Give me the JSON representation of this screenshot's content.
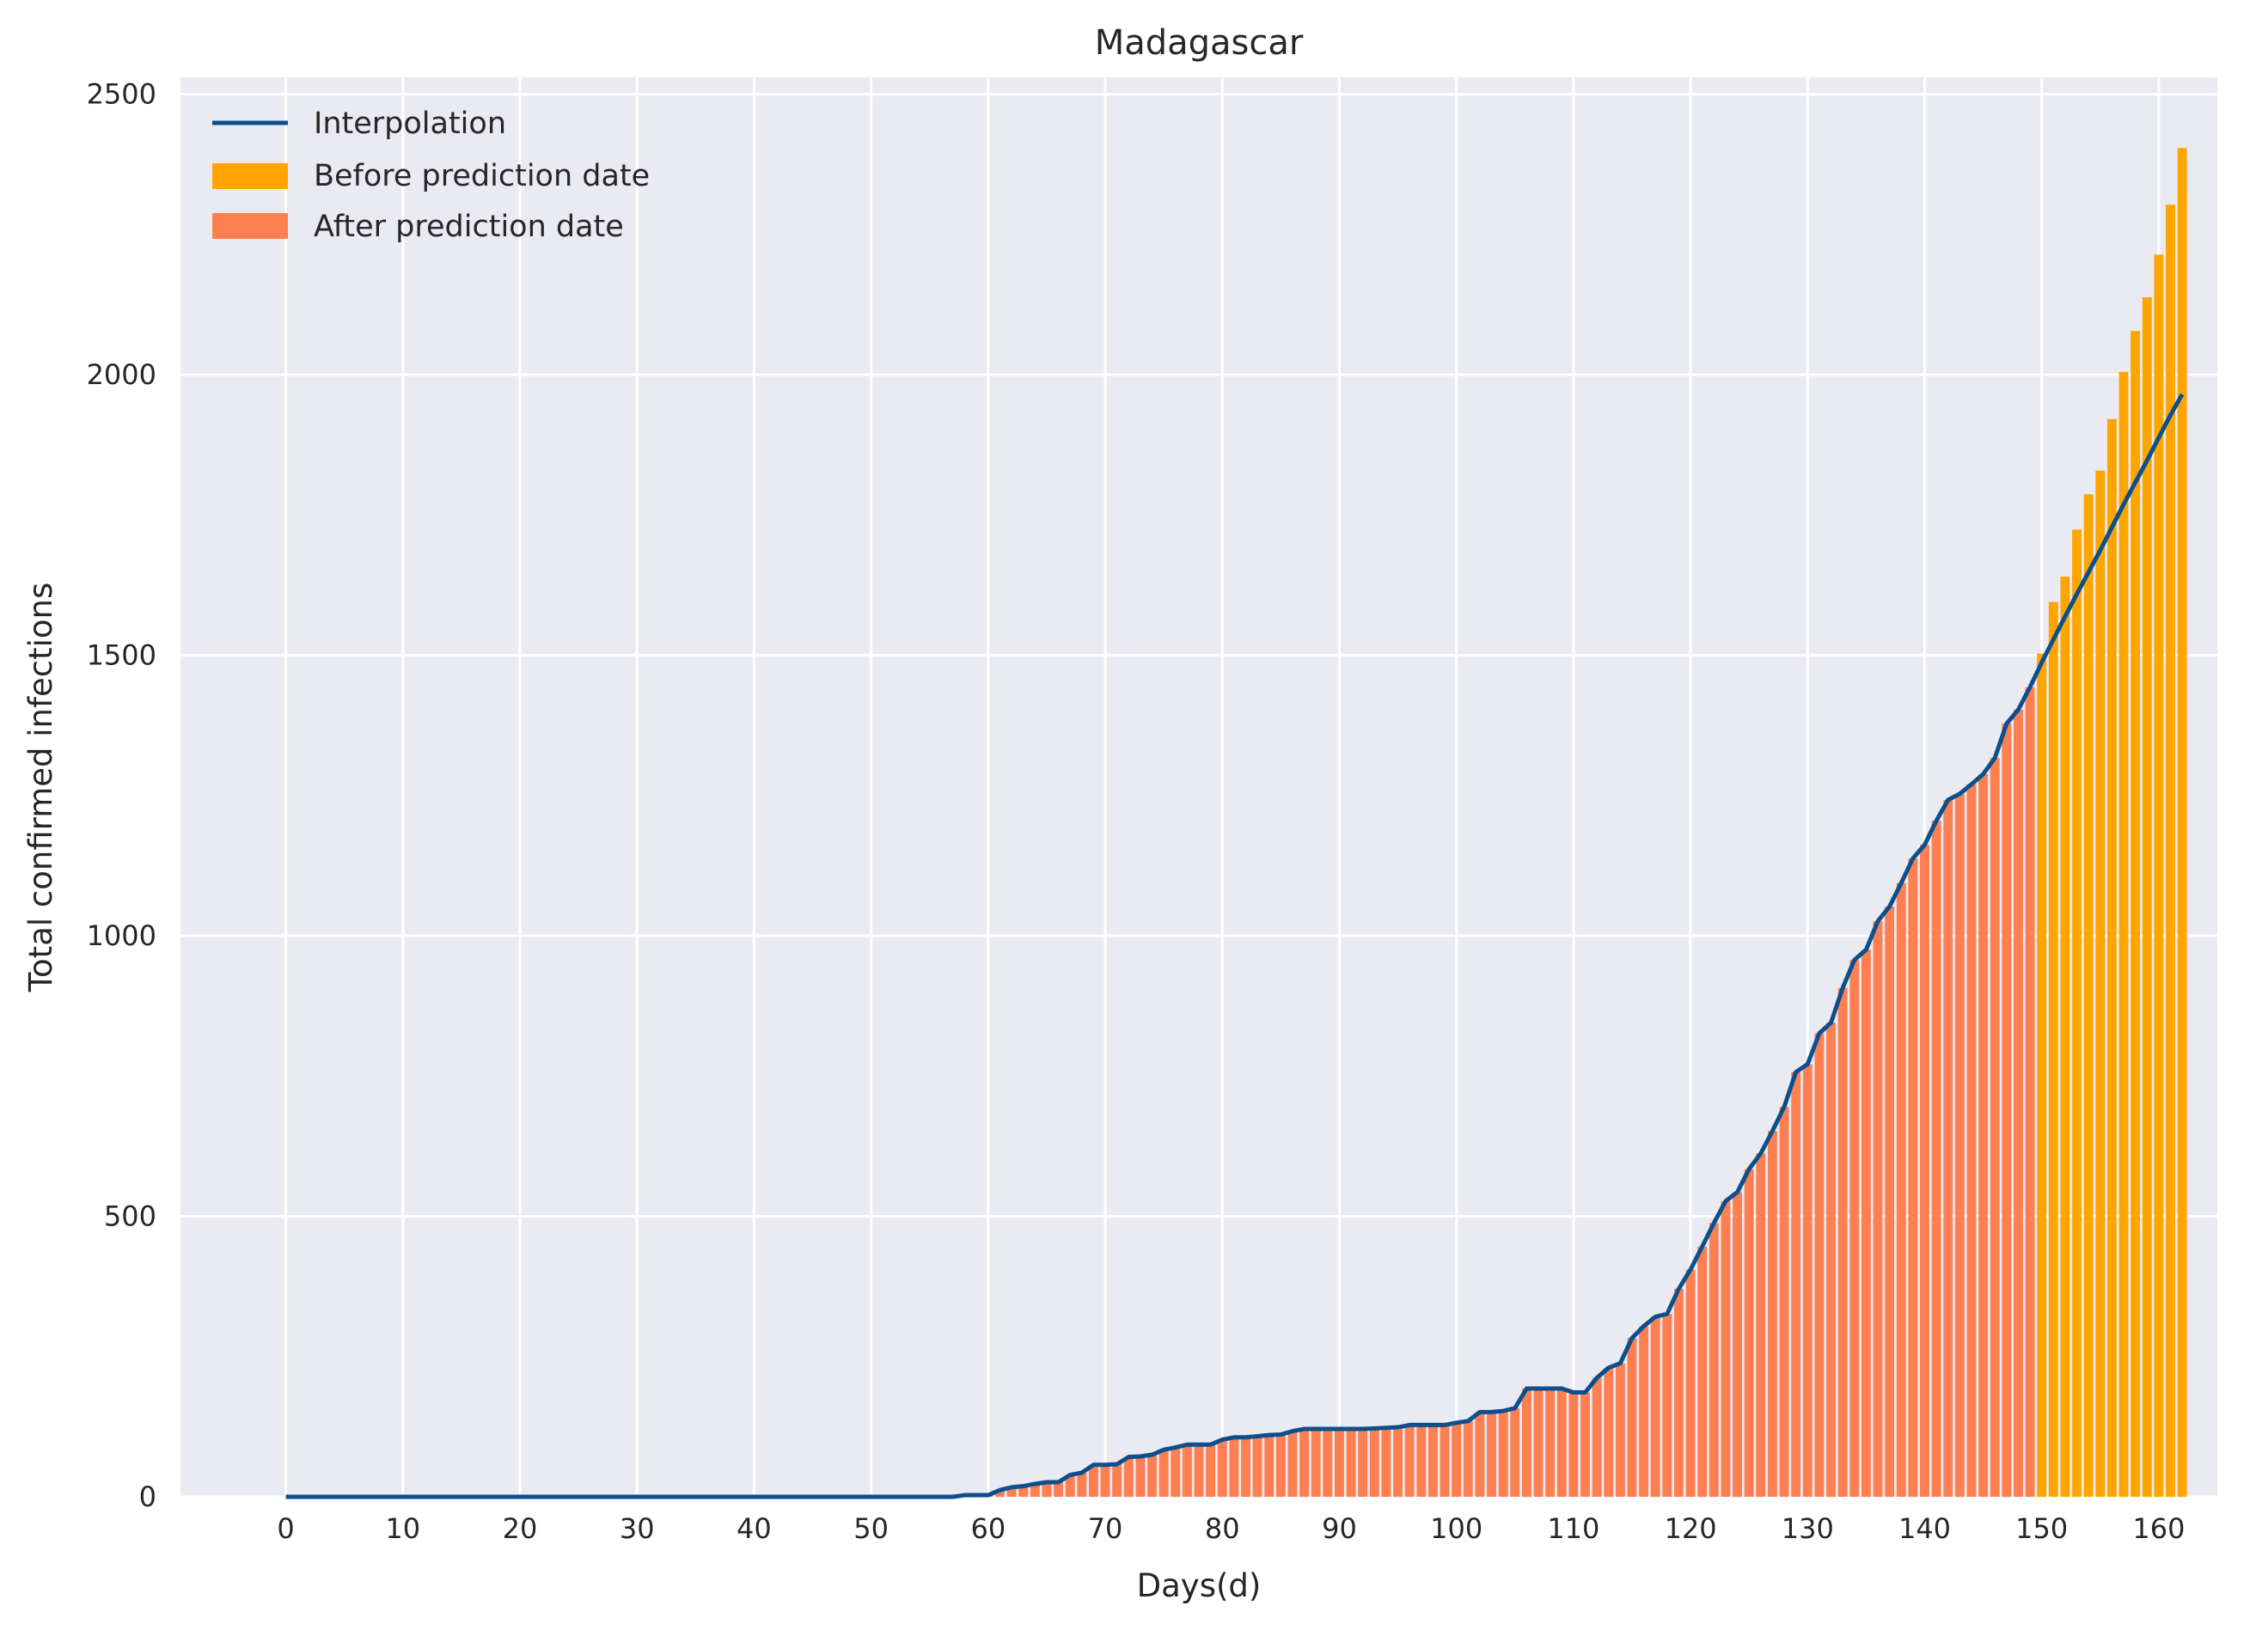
{
  "chart_data": {
    "type": "bar",
    "title": "Madagascar",
    "xlabel": "Days(d)",
    "ylabel": "Total confirmed infections",
    "xlim": [
      -9,
      165
    ],
    "ylim": [
      0,
      2530
    ],
    "grid": true,
    "legend_position": "top-left",
    "x_ticks": [
      0,
      10,
      20,
      30,
      40,
      50,
      60,
      70,
      80,
      90,
      100,
      110,
      120,
      130,
      140,
      150,
      160
    ],
    "y_ticks": [
      0,
      500,
      1000,
      1500,
      2000,
      2500
    ],
    "prediction_start_day": 150,
    "colors": {
      "background": "#eaeaf2",
      "grid": "#ffffff",
      "interpolation": "#0b4f8c",
      "before_prediction": "#ffa500",
      "after_prediction": "#ff7f50"
    },
    "series": [
      {
        "name": "Interpolation",
        "kind": "line",
        "values": [
          0,
          0,
          0,
          0,
          0,
          0,
          0,
          0,
          0,
          0,
          0,
          0,
          0,
          0,
          0,
          0,
          0,
          0,
          0,
          0,
          0,
          0,
          0,
          0,
          0,
          0,
          0,
          0,
          0,
          0,
          0,
          0,
          0,
          0,
          0,
          0,
          0,
          0,
          0,
          0,
          0,
          0,
          0,
          0,
          0,
          0,
          0,
          0,
          0,
          0,
          0,
          0,
          0,
          0,
          0,
          0,
          0,
          0,
          3,
          3,
          3,
          12,
          17,
          19,
          23,
          26,
          26,
          39,
          43,
          57,
          57,
          58,
          71,
          72,
          75,
          84,
          88,
          93,
          93,
          93,
          102,
          106,
          106,
          108,
          110,
          111,
          117,
          121,
          121,
          121,
          121,
          121,
          121,
          122,
          123,
          124,
          128,
          128,
          128,
          128,
          132,
          135,
          151,
          151,
          153,
          158,
          193,
          193,
          193,
          193,
          186,
          186,
          212,
          230,
          238,
          283,
          304,
          321,
          326,
          371,
          405,
          446,
          488,
          527,
          543,
          584,
          612,
          652,
          695,
          757,
          771,
          826,
          845,
          907,
          957,
          975,
          1026,
          1052,
          1094,
          1138,
          1162,
          1205,
          1242,
          1253,
          1270,
          1288,
          1317,
          1378,
          1403,
          1443,
          1487,
          1528,
          1569,
          1609,
          1648,
          1687,
          1728,
          1769,
          1808,
          1847,
          1888,
          1928,
          1965
        ]
      },
      {
        "name": "Before prediction date",
        "kind": "bar",
        "values": [
          0,
          0,
          0,
          0,
          0,
          0,
          0,
          0,
          0,
          0,
          0,
          0,
          0,
          0,
          0,
          0,
          0,
          0,
          0,
          0,
          0,
          0,
          0,
          0,
          0,
          0,
          0,
          0,
          0,
          0,
          0,
          0,
          0,
          0,
          0,
          0,
          0,
          0,
          0,
          0,
          0,
          0,
          0,
          0,
          0,
          0,
          0,
          0,
          0,
          0,
          0,
          0,
          0,
          0,
          0,
          0,
          0,
          0,
          3,
          3,
          3,
          12,
          17,
          19,
          23,
          26,
          26,
          39,
          43,
          57,
          57,
          58,
          71,
          72,
          75,
          84,
          88,
          93,
          93,
          93,
          102,
          106,
          106,
          108,
          110,
          111,
          117,
          121,
          121,
          121,
          121,
          121,
          121,
          122,
          123,
          124,
          128,
          128,
          128,
          128,
          132,
          135,
          151,
          151,
          153,
          158,
          193,
          193,
          193,
          193,
          186,
          186,
          212,
          230,
          238,
          283,
          304,
          321,
          326,
          371,
          405,
          446,
          488,
          527,
          543,
          584,
          612,
          652,
          695,
          757,
          771,
          826,
          845,
          907,
          957,
          975,
          1026,
          1052,
          1094,
          1138,
          1162,
          1205,
          1242,
          1253,
          1270,
          1288,
          1317,
          1378,
          1403,
          1443,
          1503,
          1595,
          1640,
          1724,
          1787,
          1829,
          1921,
          2005,
          2078,
          2138,
          2214,
          2303,
          2404
        ]
      },
      {
        "name": "After prediction date",
        "kind": "bar"
      }
    ]
  }
}
